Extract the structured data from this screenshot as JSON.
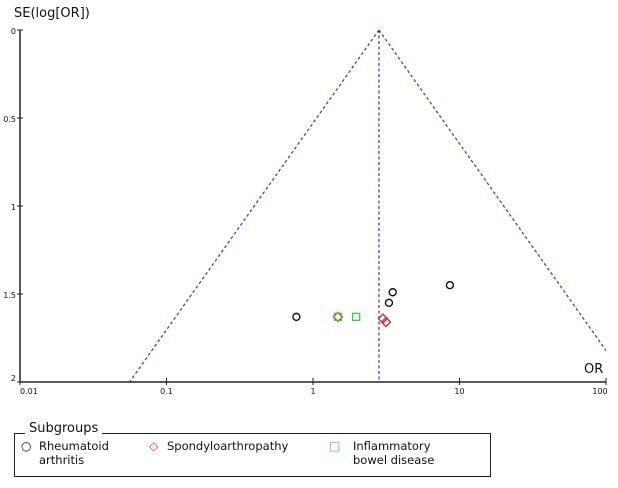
{
  "chart_data": {
    "type": "scatter",
    "ylabel": "SE(log[OR])",
    "xlabel": "OR",
    "x_scale": "log",
    "xlim": [
      0.01,
      100
    ],
    "ylim": [
      0,
      2
    ],
    "y_inverted": true,
    "x_ticks": [
      "0.01",
      "0.1",
      "1",
      "10",
      "100"
    ],
    "x_tick_values": [
      0.01,
      0.1,
      1,
      10,
      100
    ],
    "y_ticks": [
      "0",
      "0.5",
      "1",
      "1.5",
      "2"
    ],
    "y_tick_values": [
      0,
      0.5,
      1,
      1.5,
      2
    ],
    "grid": false,
    "pooled_or": 2.82,
    "line_color": "#3333cc",
    "legend_title": "Subgroups",
    "legend_placement": "bottom",
    "series": [
      {
        "name": "Rheumatoid arthritis",
        "marker": "circle",
        "color": "#111111",
        "points": [
          [
            0.77,
            1.63
          ],
          [
            3.3,
            1.55
          ],
          [
            3.5,
            1.49
          ],
          [
            8.6,
            1.45
          ]
        ]
      },
      {
        "name": "Spondyloarthropathy",
        "marker": "diamond",
        "color": "#c0392b",
        "points": [
          [
            1.48,
            1.63
          ],
          [
            3.0,
            1.64
          ],
          [
            3.15,
            1.66
          ]
        ]
      },
      {
        "name": "Inflammatory bowel disease",
        "marker": "square",
        "color": "#44cc44",
        "points": [
          [
            1.48,
            1.63
          ],
          [
            1.97,
            1.63
          ]
        ]
      }
    ]
  },
  "legend": {
    "title": "Subgroups",
    "items": [
      {
        "line1": "Rheumatoid",
        "line2": "arthritis",
        "symbol": "○"
      },
      {
        "line1": "Spondyloarthropathy",
        "line2": "",
        "symbol": "◇"
      },
      {
        "line1": "Inflammatory",
        "line2": "bowel disease",
        "symbol": "□"
      }
    ]
  }
}
